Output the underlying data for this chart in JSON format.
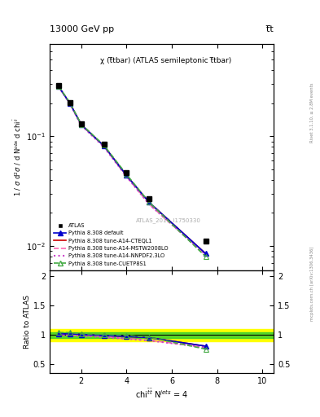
{
  "title_left": "13000 GeV pp",
  "title_right": "t̅t",
  "plot_title": "χ (t̅tbar) (ATLAS semileptonic t̅tbar)",
  "watermark": "ATLAS_2019_I1750330",
  "right_label_top": "Rivet 3.1.10, ≥ 2.8M events",
  "right_label_bottom": "mcplots.cern.ch [arXiv:1306.3436]",
  "ylabel_main": "1 / σ d²σ / d Nᵒᵇˢ d chi⁻¹",
  "ylabel_ratio": "Ratio to ATLAS",
  "x_data": [
    1.0,
    1.5,
    2.0,
    3.0,
    4.0,
    5.0,
    7.5
  ],
  "atlas_y": [
    0.29,
    0.205,
    0.13,
    0.085,
    0.047,
    0.027,
    0.011
  ],
  "pythia_default_y": [
    0.285,
    0.2,
    0.128,
    0.082,
    0.044,
    0.025,
    0.0085
  ],
  "pythia_cteq_y": [
    0.285,
    0.2,
    0.128,
    0.082,
    0.044,
    0.025,
    0.0085
  ],
  "pythia_mstw_y": [
    0.284,
    0.199,
    0.127,
    0.081,
    0.043,
    0.024,
    0.0083
  ],
  "pythia_nnpdf_y": [
    0.283,
    0.198,
    0.126,
    0.08,
    0.043,
    0.024,
    0.0083
  ],
  "pythia_cuetp_y": [
    0.288,
    0.202,
    0.129,
    0.083,
    0.045,
    0.025,
    0.008
  ],
  "ratio_default": [
    1.02,
    1.02,
    1.01,
    0.99,
    0.975,
    0.955,
    0.81
  ],
  "ratio_cteq": [
    1.02,
    1.02,
    1.01,
    0.99,
    0.975,
    0.955,
    0.81
  ],
  "ratio_mstw": [
    1.01,
    1.0,
    1.0,
    0.975,
    0.94,
    0.91,
    0.79
  ],
  "ratio_nnpdf": [
    1.0,
    0.99,
    0.99,
    0.96,
    0.935,
    0.905,
    0.79
  ],
  "ratio_cuetp": [
    1.04,
    1.04,
    1.02,
    1.005,
    0.995,
    0.96,
    0.76
  ],
  "band_yellow_low": 0.9,
  "band_yellow_high": 1.1,
  "band_green_low": 0.95,
  "band_green_high": 1.05,
  "ylim_main": [
    0.006,
    0.7
  ],
  "ylim_ratio": [
    0.35,
    2.1
  ],
  "xlim": [
    0.6,
    10.5
  ],
  "colors": {
    "atlas": "black",
    "default": "#0000cc",
    "cteq": "#cc0000",
    "mstw": "#ff69b4",
    "nnpdf": "#cc44cc",
    "cuetp": "#44aa44"
  }
}
